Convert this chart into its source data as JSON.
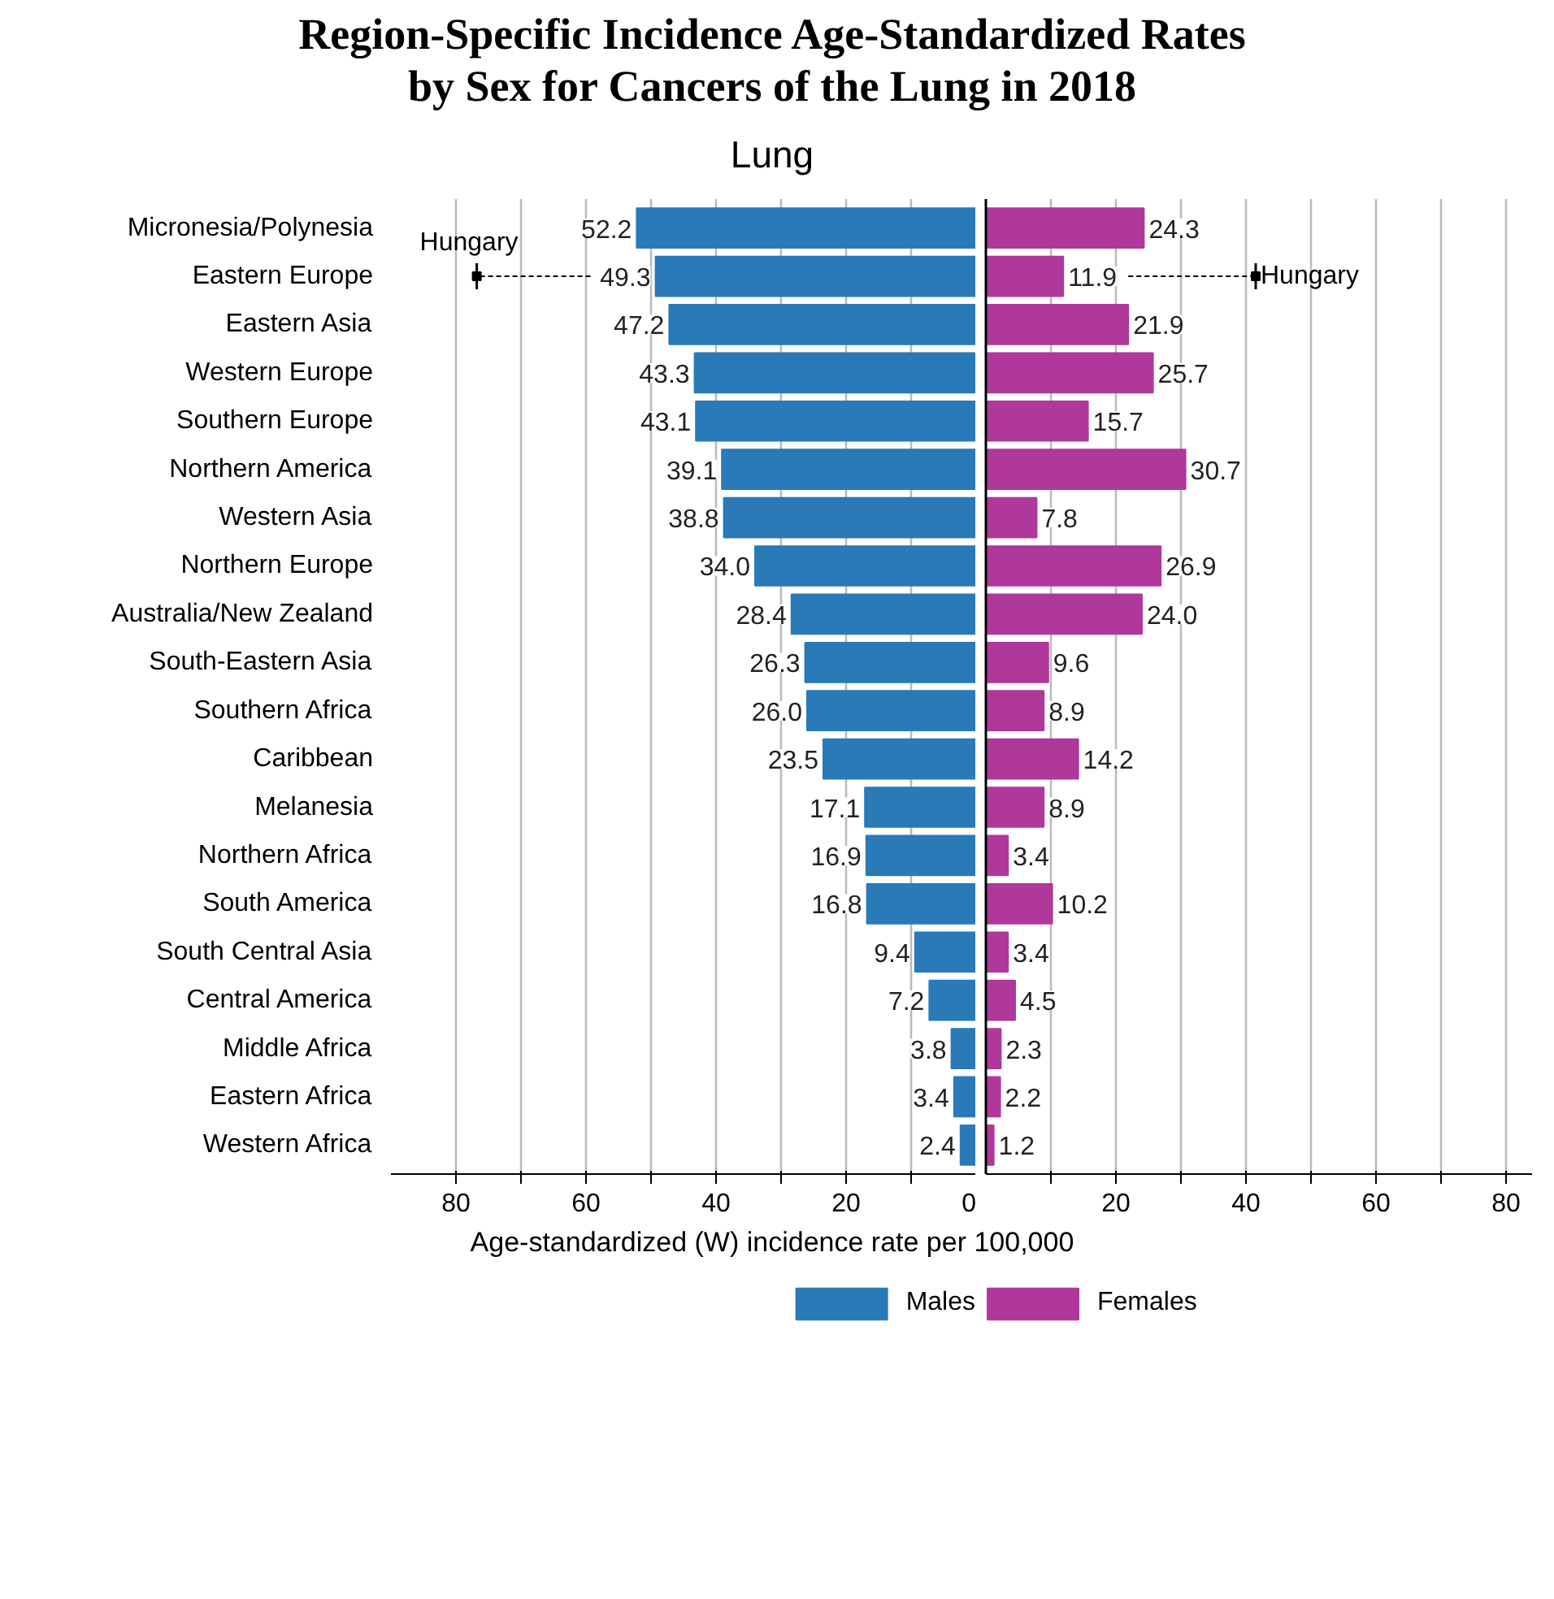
{
  "chart_data": [
    {
      "type": "bar",
      "orientation": "horizontal",
      "title": "Region-Specific Incidence Age-Standardized Rates\nby Sex for Cancers of the Lung in 2018",
      "subtitle": "Lung",
      "xlabel": "Age-standardized (W) incidence rate per 100,000",
      "categories": [
        "Micronesia/Polynesia",
        "Eastern Europe",
        "Eastern Asia",
        "Western Europe",
        "Southern Europe",
        "Northern America",
        "Western Asia",
        "Northern Europe",
        "Australia/New Zealand",
        "South-Eastern Asia",
        "Southern Africa",
        "Caribbean",
        "Melanesia",
        "Northern Africa",
        "South America",
        "South Central Asia",
        "Central America",
        "Middle Africa",
        "Eastern Africa",
        "Western Africa"
      ],
      "series": [
        {
          "name": "Males",
          "color": "#2a7ab8",
          "values": [
            52.2,
            49.3,
            47.2,
            43.3,
            43.1,
            39.1,
            38.8,
            34.0,
            28.4,
            26.3,
            26.0,
            23.5,
            17.1,
            16.9,
            16.8,
            9.4,
            7.2,
            3.8,
            3.4,
            2.4
          ],
          "value_labels": [
            "52.2",
            "49.3",
            "47.2",
            "43.3",
            "43.1",
            "39.1",
            "38.8",
            "34.0",
            "28.4",
            "26.3",
            "26.0",
            "23.5",
            "17.1",
            "16.9",
            "16.8",
            "9.4",
            "7.2",
            "3.8",
            "3.4",
            "2.4"
          ]
        },
        {
          "type": "scatter",
          "name": "Hungary",
          "color": "#000000",
          "values": [
            null,
            76.8,
            null,
            null,
            null,
            null,
            null,
            null,
            null,
            null,
            null,
            null,
            null,
            null,
            null,
            null,
            null,
            null,
            null,
            null
          ]
        }
      ],
      "xlim": [
        90,
        0
      ],
      "xticks": [
        80,
        {
          "value": 70,
          "label": null
        },
        60,
        {
          "value": 50,
          "label": null
        },
        40,
        {
          "value": 30,
          "label": null
        },
        20,
        {
          "value": 10,
          "label": null
        },
        0
      ],
      "grid": "x",
      "legend": "bottom"
    },
    {
      "type": "bar",
      "orientation": "horizontal",
      "series": [
        {
          "name": "Females",
          "color": "#b0389a",
          "values": [
            24.3,
            11.9,
            21.9,
            25.7,
            15.7,
            30.7,
            7.8,
            26.9,
            24.0,
            9.6,
            8.9,
            14.2,
            8.9,
            3.4,
            10.2,
            3.4,
            4.5,
            2.3,
            2.2,
            1.2
          ],
          "value_labels": [
            "24.3",
            "11.9",
            "21.9",
            "25.7",
            "15.7",
            "30.7",
            "7.8",
            "26.9",
            "24.0",
            "9.6",
            "8.9",
            "14.2",
            "8.9",
            "3.4",
            "10.2",
            "3.4",
            "4.5",
            "2.3",
            "2.2",
            "1.2"
          ]
        },
        {
          "type": "scatter",
          "name": "Hungary",
          "color": "#000000",
          "values": [
            null,
            41.5,
            null,
            null,
            null,
            null,
            null,
            null,
            null,
            null,
            null,
            null,
            null,
            null,
            null,
            null,
            null,
            null,
            null,
            null
          ]
        }
      ],
      "xlim": [
        0,
        84
      ],
      "xticks": [
        {
          "value": 10,
          "label": null
        },
        20,
        {
          "value": 30,
          "label": null
        },
        40,
        {
          "value": 50,
          "label": null
        },
        60,
        {
          "value": 70,
          "label": null
        },
        80
      ],
      "tick_labels": "x",
      "grid": "x",
      "legend": "bottom"
    }
  ]
}
